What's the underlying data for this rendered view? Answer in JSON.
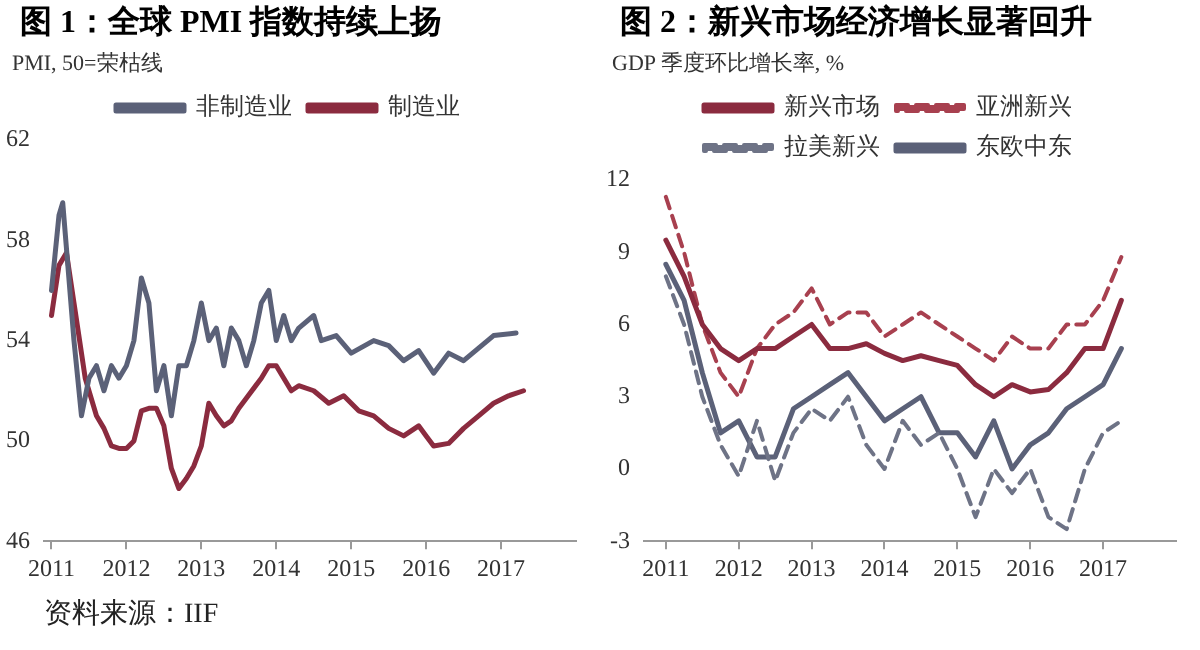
{
  "chart_data": [
    {
      "type": "line",
      "title": "图 1：全球 PMI 指数持续上扬",
      "subtitle": "PMI, 50=荣枯线",
      "annotations": [
        "资料来源：IIF"
      ],
      "xlim": [
        2010.9,
        2018
      ],
      "xticks": [
        2011,
        2012,
        2013,
        2014,
        2015,
        2016,
        2017
      ],
      "ylim": [
        46,
        62
      ],
      "yticks": [
        46,
        50,
        54,
        58,
        62
      ],
      "grid": false,
      "legend": "top",
      "marker": "none",
      "series": [
        {
          "name": "非制造业",
          "color": "#5b6178",
          "line_style": "solid",
          "x": [
            2011.0,
            2011.1,
            2011.15,
            2011.3,
            2011.4,
            2011.5,
            2011.6,
            2011.7,
            2011.8,
            2011.9,
            2012.0,
            2012.1,
            2012.2,
            2012.3,
            2012.4,
            2012.5,
            2012.6,
            2012.7,
            2012.8,
            2012.9,
            2013.0,
            2013.1,
            2013.2,
            2013.3,
            2013.4,
            2013.5,
            2013.6,
            2013.7,
            2013.8,
            2013.9,
            2014.0,
            2014.1,
            2014.2,
            2014.3,
            2014.5,
            2014.6,
            2014.8,
            2015.0,
            2015.3,
            2015.5,
            2015.7,
            2015.9,
            2016.1,
            2016.3,
            2016.5,
            2016.7,
            2016.9,
            2017.2
          ],
          "values": [
            56,
            59,
            59.5,
            54,
            51,
            52.5,
            53,
            52,
            53,
            52.5,
            53,
            54,
            56.5,
            55.5,
            52,
            53,
            51,
            53,
            53,
            54,
            55.5,
            54,
            54.5,
            53,
            54.5,
            54,
            53,
            54,
            55.5,
            56,
            54,
            55,
            54,
            54.5,
            55,
            54,
            54.2,
            53.5,
            54,
            53.8,
            53.2,
            53.6,
            52.7,
            53.5,
            53.2,
            53.7,
            54.2,
            54.3
          ]
        },
        {
          "name": "制造业",
          "color": "#8b2b3f",
          "line_style": "solid",
          "x": [
            2011.0,
            2011.1,
            2011.2,
            2011.3,
            2011.45,
            2011.6,
            2011.7,
            2011.8,
            2011.9,
            2012.0,
            2012.1,
            2012.2,
            2012.3,
            2012.4,
            2012.5,
            2012.6,
            2012.7,
            2012.8,
            2012.9,
            2013.0,
            2013.1,
            2013.2,
            2013.3,
            2013.4,
            2013.5,
            2013.6,
            2013.8,
            2013.9,
            2014.0,
            2014.1,
            2014.2,
            2014.3,
            2014.5,
            2014.7,
            2014.9,
            2015.1,
            2015.3,
            2015.5,
            2015.7,
            2015.9,
            2016.0,
            2016.1,
            2016.3,
            2016.5,
            2016.7,
            2016.9,
            2017.1,
            2017.3
          ],
          "values": [
            55,
            57,
            57.5,
            55.5,
            52.5,
            51,
            50.5,
            49.8,
            49.7,
            49.7,
            50,
            51.2,
            51.3,
            51.3,
            50.6,
            48.9,
            48.1,
            48.5,
            49,
            49.8,
            51.5,
            51,
            50.6,
            50.8,
            51.3,
            51.7,
            52.5,
            53,
            53,
            52.5,
            52,
            52.2,
            52,
            51.5,
            51.8,
            51.2,
            51,
            50.5,
            50.2,
            50.6,
            50.2,
            49.8,
            49.9,
            50.5,
            51,
            51.5,
            51.8,
            52
          ]
        }
      ]
    },
    {
      "type": "line",
      "title": "图 2：新兴市场经济增长显著回升",
      "subtitle": "GDP 季度环比增长率, %",
      "xlim": [
        2010.7,
        2018
      ],
      "xticks": [
        2011,
        2012,
        2013,
        2014,
        2015,
        2016,
        2017
      ],
      "ylim": [
        -3,
        12
      ],
      "yticks": [
        -3,
        0,
        3,
        6,
        9,
        12
      ],
      "grid": false,
      "legend": "top",
      "marker": "none",
      "x": [
        2011.0,
        2011.25,
        2011.5,
        2011.75,
        2012.0,
        2012.25,
        2012.5,
        2012.75,
        2013.0,
        2013.25,
        2013.5,
        2013.75,
        2014.0,
        2014.25,
        2014.5,
        2014.75,
        2015.0,
        2015.25,
        2015.5,
        2015.75,
        2016.0,
        2016.25,
        2016.5,
        2016.75,
        2017.0,
        2017.25
      ],
      "series": [
        {
          "name": "新兴市场",
          "color": "#8b2b3f",
          "line_style": "solid",
          "values": [
            9.5,
            8,
            6,
            5,
            4.5,
            5,
            5,
            5.5,
            6,
            5,
            5,
            5.2,
            4.8,
            4.5,
            4.7,
            4.5,
            4.3,
            3.5,
            3,
            3.5,
            3.2,
            3.3,
            4,
            5,
            5,
            7
          ]
        },
        {
          "name": "亚洲新兴",
          "color": "#a8404f",
          "line_style": "dashed",
          "values": [
            11.3,
            9,
            6,
            4,
            3,
            5,
            6,
            6.5,
            7.5,
            6,
            6.5,
            6.5,
            5.5,
            6,
            6.5,
            6,
            5.5,
            5,
            4.5,
            5.5,
            5,
            5,
            6,
            6,
            7,
            8.8
          ]
        },
        {
          "name": "拉美新兴",
          "color": "#6e7386",
          "line_style": "dashed",
          "values": [
            8,
            6,
            3,
            1,
            -0.3,
            2,
            -0.5,
            1.5,
            2.5,
            2,
            3,
            1,
            0,
            2,
            1,
            1.5,
            0,
            -2,
            0,
            -1,
            0,
            -2,
            -2.5,
            0,
            1.5,
            2
          ]
        },
        {
          "name": "东欧中东",
          "color": "#5b6178",
          "line_style": "solid",
          "values": [
            8.5,
            7,
            4,
            1.5,
            2,
            0.5,
            0.5,
            2.5,
            3,
            3.5,
            4,
            3,
            2,
            2.5,
            3,
            1.5,
            1.5,
            0.5,
            2,
            0,
            1,
            1.5,
            2.5,
            3,
            3.5,
            5
          ]
        }
      ]
    }
  ]
}
